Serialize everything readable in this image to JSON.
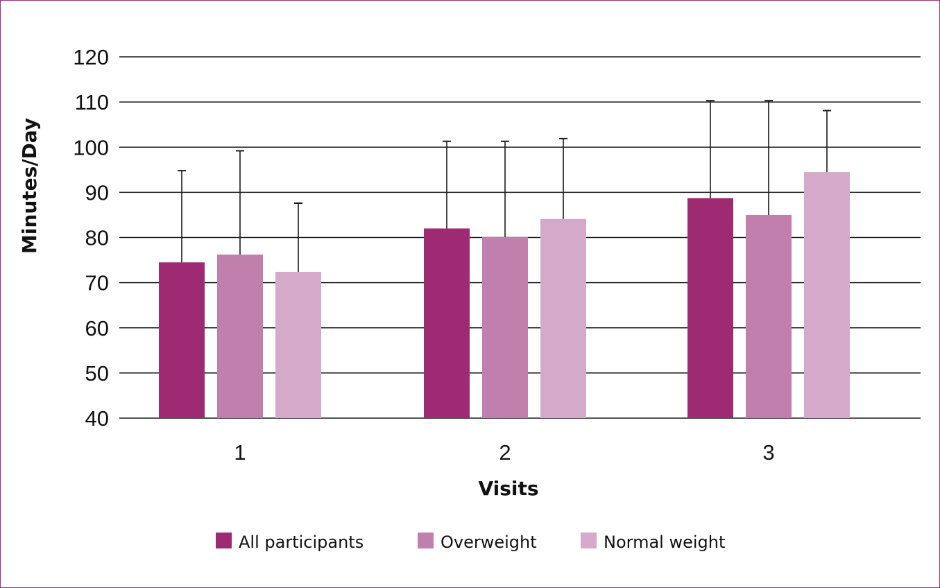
{
  "chart_data": {
    "type": "bar",
    "categories": [
      "1",
      "2",
      "3"
    ],
    "series": [
      {
        "name": "All participants",
        "color": "#9e2a74",
        "values": [
          74.5,
          82.0,
          88.7
        ],
        "error_upper": [
          94.8,
          101.3,
          110.3
        ]
      },
      {
        "name": "Overweight",
        "color": "#c07fad",
        "values": [
          76.2,
          80.1,
          85.0
        ],
        "error_upper": [
          99.2,
          101.3,
          110.3
        ]
      },
      {
        "name": "Normal weight",
        "color": "#d5a9c9",
        "values": [
          72.4,
          84.1,
          94.5
        ],
        "error_upper": [
          87.6,
          101.9,
          108.1
        ]
      }
    ],
    "xlabel": "Visits",
    "ylabel": "Minutes/Day",
    "ylim": [
      40,
      120
    ],
    "yticks": [
      "40",
      "50",
      "60",
      "70",
      "80",
      "90",
      "100",
      "110",
      "120"
    ],
    "grid": true,
    "legend_position": "bottom"
  }
}
